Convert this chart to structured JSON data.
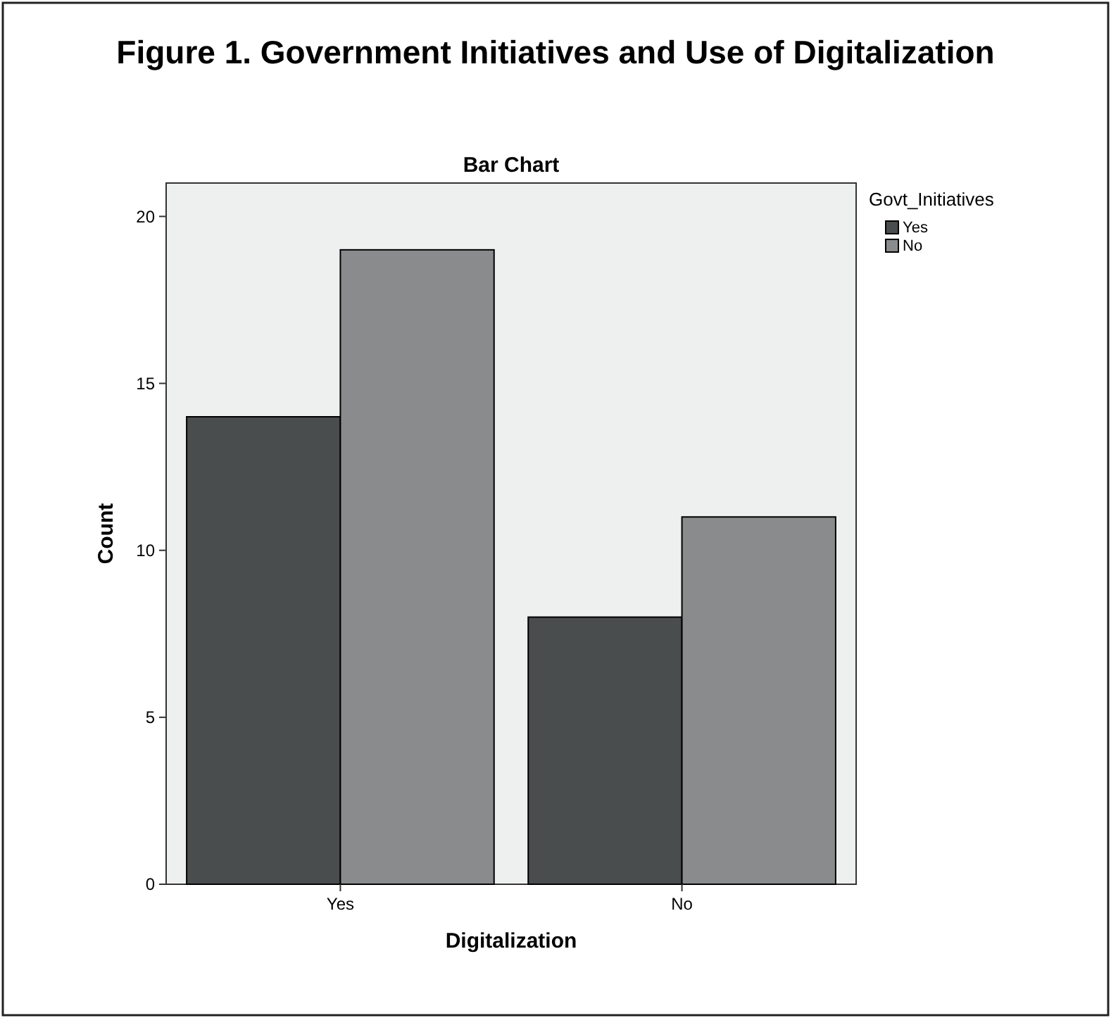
{
  "chart_data": {
    "type": "bar",
    "title": "Figure 1. Government Initiatives and Use of Digitalization",
    "subtitle": "Bar Chart",
    "xlabel": "Digitalization",
    "ylabel": "Count",
    "legend_title": "Govt_Initiatives",
    "categories": [
      "Yes",
      "No"
    ],
    "series": [
      {
        "name": "Yes",
        "color": "#4a4d4e",
        "values": [
          14,
          8
        ]
      },
      {
        "name": "No",
        "color": "#8a8b8d",
        "values": [
          19,
          11
        ]
      }
    ],
    "ylim": [
      0,
      21
    ],
    "yticks": [
      0,
      5,
      10,
      15,
      20
    ],
    "grid": false,
    "legend": "top right"
  }
}
